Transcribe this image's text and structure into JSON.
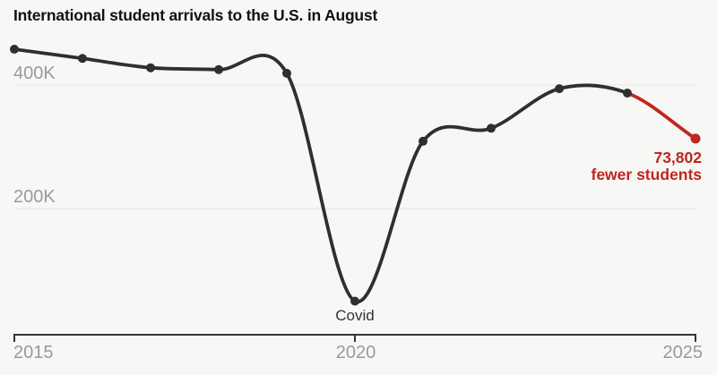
{
  "colors": {
    "background": "#f7f7f5",
    "line": "#2f2f2f",
    "highlight": "#c0271e",
    "grid": "#e4e4e2",
    "axis": "#333333",
    "tick_label": "#9a9a9a",
    "title": "#121212"
  },
  "chart_data": {
    "type": "line",
    "title": "International student arrivals to the U.S. in August",
    "x": [
      2015,
      2016,
      2017,
      2018,
      2019,
      2020,
      2021,
      2022,
      2023,
      2024,
      2025
    ],
    "series": [
      {
        "name": "International student arrivals in August",
        "values": [
          458000,
          443000,
          428000,
          425000,
          419000,
          50000,
          309000,
          330000,
          394000,
          387000,
          313198
        ]
      }
    ],
    "ylim": [
      0,
      470000
    ],
    "grid": "horizontal",
    "yticks": [
      {
        "value": 400000,
        "label": "400K"
      },
      {
        "value": 200000,
        "label": "200K"
      }
    ],
    "xticks": [
      {
        "value": 2015,
        "label": "2015"
      },
      {
        "value": 2020,
        "label": "2020"
      },
      {
        "value": 2025,
        "label": "2025"
      }
    ],
    "annotations": [
      {
        "x": 2020,
        "text": "Covid"
      }
    ],
    "highlight_segment": {
      "from_x": 2024,
      "to_x": 2025,
      "color": "#c0271e",
      "label_line1": "73,802",
      "label_line2": "fewer students"
    }
  }
}
